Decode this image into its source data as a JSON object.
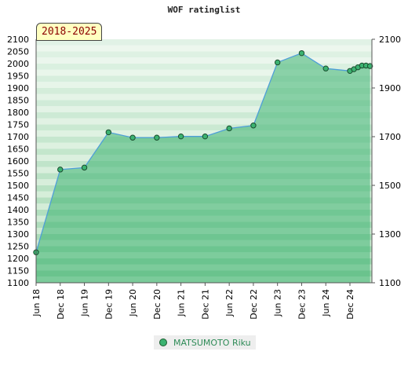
{
  "chart_data": {
    "type": "area",
    "title": "WOF ratinglist",
    "period": "2018-2025",
    "ylim": [
      1100,
      2100
    ],
    "y_ticks_left": [
      1100,
      1150,
      1200,
      1250,
      1300,
      1350,
      1400,
      1450,
      1500,
      1550,
      1600,
      1650,
      1700,
      1750,
      1800,
      1850,
      1900,
      1950,
      2000,
      2050,
      2100
    ],
    "y_ticks_right": [
      1100,
      1300,
      1500,
      1700,
      1900,
      2100
    ],
    "x_tick_labels": [
      "Jun 18",
      "Dec 18",
      "Jun 19",
      "Dec 19",
      "Jun 20",
      "Dec 20",
      "Jun 21",
      "Dec 21",
      "Jun 22",
      "Dec 22",
      "Jun 23",
      "Dec 23",
      "Jun 24",
      "Dec 24"
    ],
    "legend_position": "bottom",
    "grid": "horizontal bands",
    "series": [
      {
        "name": "MATSUMOTO Riku",
        "color": "#3cb371",
        "line_color": "#4f9fd8",
        "points": [
          {
            "x": "2018-06",
            "y": 1225
          },
          {
            "x": "2018-12",
            "y": 1565
          },
          {
            "x": "2019-06",
            "y": 1573
          },
          {
            "x": "2019-12",
            "y": 1718
          },
          {
            "x": "2020-06",
            "y": 1696
          },
          {
            "x": "2020-12",
            "y": 1696
          },
          {
            "x": "2021-06",
            "y": 1701
          },
          {
            "x": "2021-12",
            "y": 1701
          },
          {
            "x": "2022-06",
            "y": 1734
          },
          {
            "x": "2022-12",
            "y": 1746
          },
          {
            "x": "2023-06",
            "y": 2005
          },
          {
            "x": "2023-12",
            "y": 2043
          },
          {
            "x": "2024-06",
            "y": 1980
          },
          {
            "x": "2024-12",
            "y": 1970
          },
          {
            "x": "2025-01",
            "y": 1977
          },
          {
            "x": "2025-02",
            "y": 1985
          },
          {
            "x": "2025-03",
            "y": 1992
          },
          {
            "x": "2025-04",
            "y": 1992
          },
          {
            "x": "2025-05",
            "y": 1990
          }
        ]
      }
    ]
  }
}
